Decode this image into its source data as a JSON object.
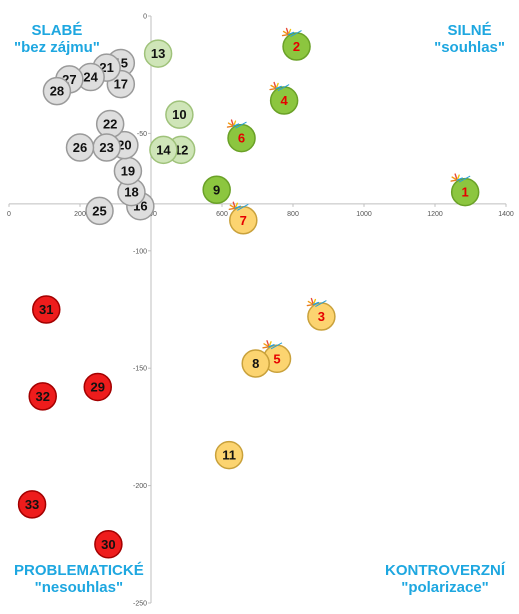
{
  "quadrants": {
    "top_left": {
      "title": "SLABÉ",
      "subtitle": "\"bez zájmu\""
    },
    "top_right": {
      "title": "SILNÉ",
      "subtitle": "\"souhlas\""
    },
    "bottom_left": {
      "title": "PROBLEMATICKÉ",
      "subtitle": "\"nesouhlas\""
    },
    "bottom_right": {
      "title": "KONTROVERZNÍ",
      "subtitle": "\"polarizace\""
    }
  },
  "colors": {
    "green": "#8cc63f",
    "light_green": "#cfe5b8",
    "grey": "#dedede",
    "yellow": "#fcd470",
    "red": "#ee1c1c",
    "axis": "#bfbfbf",
    "quadrant_label": "#1ea7e0",
    "red_text": "#e60000"
  },
  "chart_data": {
    "type": "scatter",
    "xlim": [
      0,
      1400
    ],
    "ylim": [
      -250,
      0
    ],
    "x_ticks": [
      0,
      200,
      400,
      600,
      800,
      1000,
      1200,
      1400
    ],
    "y_ticks": [
      0,
      -50,
      -100,
      -150,
      -200,
      -250
    ],
    "x_tick_labels": [
      "0",
      "200",
      "400",
      "600",
      "800",
      "1000",
      "1200",
      "1400"
    ],
    "y_tick_labels": [
      "0",
      "-50",
      "-100",
      "-150",
      "-200",
      "-250"
    ],
    "grid": false,
    "points": [
      {
        "label": "1",
        "x": 1285,
        "y": -75,
        "category": "green",
        "burst": true
      },
      {
        "label": "2",
        "x": 810,
        "y": -13,
        "category": "green",
        "burst": true
      },
      {
        "label": "3",
        "x": 880,
        "y": -128,
        "category": "yellow",
        "burst": true
      },
      {
        "label": "4",
        "x": 775,
        "y": -36,
        "category": "green",
        "burst": true
      },
      {
        "label": "5",
        "x": 755,
        "y": -146,
        "category": "yellow",
        "burst": true
      },
      {
        "label": "6",
        "x": 655,
        "y": -52,
        "category": "green",
        "burst": true
      },
      {
        "label": "7",
        "x": 660,
        "y": -87,
        "category": "yellow",
        "burst": true
      },
      {
        "label": "8",
        "x": 695,
        "y": -148,
        "category": "yellow",
        "burst": false
      },
      {
        "label": "9",
        "x": 585,
        "y": -74,
        "category": "green",
        "burst": false
      },
      {
        "label": "10",
        "x": 480,
        "y": -42,
        "category": "light_green",
        "burst": false
      },
      {
        "label": "11",
        "x": 620,
        "y": -187,
        "category": "yellow",
        "burst": false
      },
      {
        "label": "12",
        "x": 485,
        "y": -57,
        "category": "light_green",
        "burst": false
      },
      {
        "label": "13",
        "x": 420,
        "y": -16,
        "category": "light_green",
        "burst": false
      },
      {
        "label": "14",
        "x": 435,
        "y": -57,
        "category": "light_green",
        "burst": false
      },
      {
        "label": "15",
        "x": 315,
        "y": -20,
        "category": "grey",
        "burst": false
      },
      {
        "label": "16",
        "x": 370,
        "y": -81,
        "category": "grey",
        "burst": false
      },
      {
        "label": "17",
        "x": 315,
        "y": -29,
        "category": "grey",
        "burst": false
      },
      {
        "label": "18",
        "x": 345,
        "y": -75,
        "category": "grey",
        "burst": false
      },
      {
        "label": "19",
        "x": 335,
        "y": -66,
        "category": "grey",
        "burst": false
      },
      {
        "label": "20",
        "x": 325,
        "y": -55,
        "category": "grey",
        "burst": false
      },
      {
        "label": "21",
        "x": 275,
        "y": -22,
        "category": "grey",
        "burst": false
      },
      {
        "label": "22",
        "x": 285,
        "y": -46,
        "category": "grey",
        "burst": false
      },
      {
        "label": "23",
        "x": 275,
        "y": -56,
        "category": "grey",
        "burst": false
      },
      {
        "label": "24",
        "x": 230,
        "y": -26,
        "category": "grey",
        "burst": false
      },
      {
        "label": "25",
        "x": 255,
        "y": -83,
        "category": "grey",
        "burst": false
      },
      {
        "label": "26",
        "x": 200,
        "y": -56,
        "category": "grey",
        "burst": false
      },
      {
        "label": "27",
        "x": 170,
        "y": -27,
        "category": "grey",
        "burst": false
      },
      {
        "label": "28",
        "x": 135,
        "y": -32,
        "category": "grey",
        "burst": false
      },
      {
        "label": "29",
        "x": 250,
        "y": -158,
        "category": "red",
        "burst": false
      },
      {
        "label": "30",
        "x": 280,
        "y": -225,
        "category": "red",
        "burst": false
      },
      {
        "label": "31",
        "x": 105,
        "y": -125,
        "category": "red",
        "burst": false
      },
      {
        "label": "32",
        "x": 95,
        "y": -162,
        "category": "red",
        "burst": false
      },
      {
        "label": "33",
        "x": 65,
        "y": -208,
        "category": "red",
        "burst": false
      }
    ]
  }
}
